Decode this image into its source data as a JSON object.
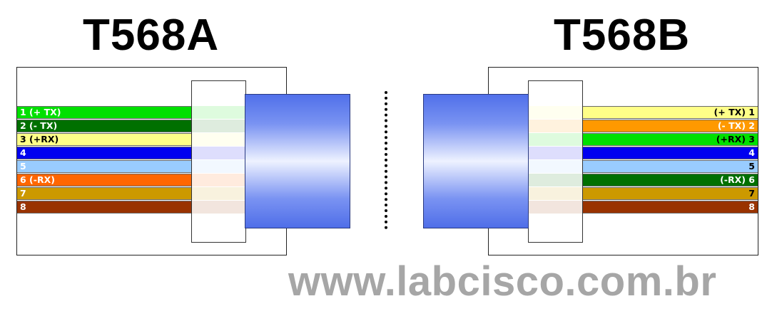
{
  "titles": {
    "left": "T568A",
    "right": "T568B"
  },
  "watermark": "www.labcisco.com.br",
  "t568a": {
    "wires": [
      {
        "label": "1 (+ TX)",
        "color": "#00e000",
        "text_color": "#ffffff"
      },
      {
        "label": "2 (- TX)",
        "color": "#007000",
        "text_color": "#ffffff"
      },
      {
        "label": "3 (+RX)",
        "color": "#ffff88",
        "text_color": "#000000"
      },
      {
        "label": "4",
        "color": "#0000f0",
        "text_color": "#ffffff"
      },
      {
        "label": "5",
        "color": "#99ccff",
        "text_color": "#ffffff"
      },
      {
        "label": "6 (-RX)",
        "color": "#ff6600",
        "text_color": "#ffffff"
      },
      {
        "label": "7",
        "color": "#cc9900",
        "text_color": "#ffffff"
      },
      {
        "label": "8",
        "color": "#993300",
        "text_color": "#ffffff"
      }
    ]
  },
  "t568b": {
    "wires": [
      {
        "label": "(+ TX) 1",
        "color": "#ffff88",
        "text_color": "#000000"
      },
      {
        "label": "(- TX) 2",
        "color": "#ff9900",
        "text_color": "#ffffff"
      },
      {
        "label": "(+RX) 3",
        "color": "#00e000",
        "text_color": "#000000"
      },
      {
        "label": "4",
        "color": "#0000f0",
        "text_color": "#ffffff"
      },
      {
        "label": "5",
        "color": "#99ccff",
        "text_color": "#000000"
      },
      {
        "label": "(-RX) 6",
        "color": "#007000",
        "text_color": "#ffffff"
      },
      {
        "label": "7",
        "color": "#cc9900",
        "text_color": "#000000"
      },
      {
        "label": "8",
        "color": "#993300",
        "text_color": "#ffffff"
      }
    ]
  }
}
